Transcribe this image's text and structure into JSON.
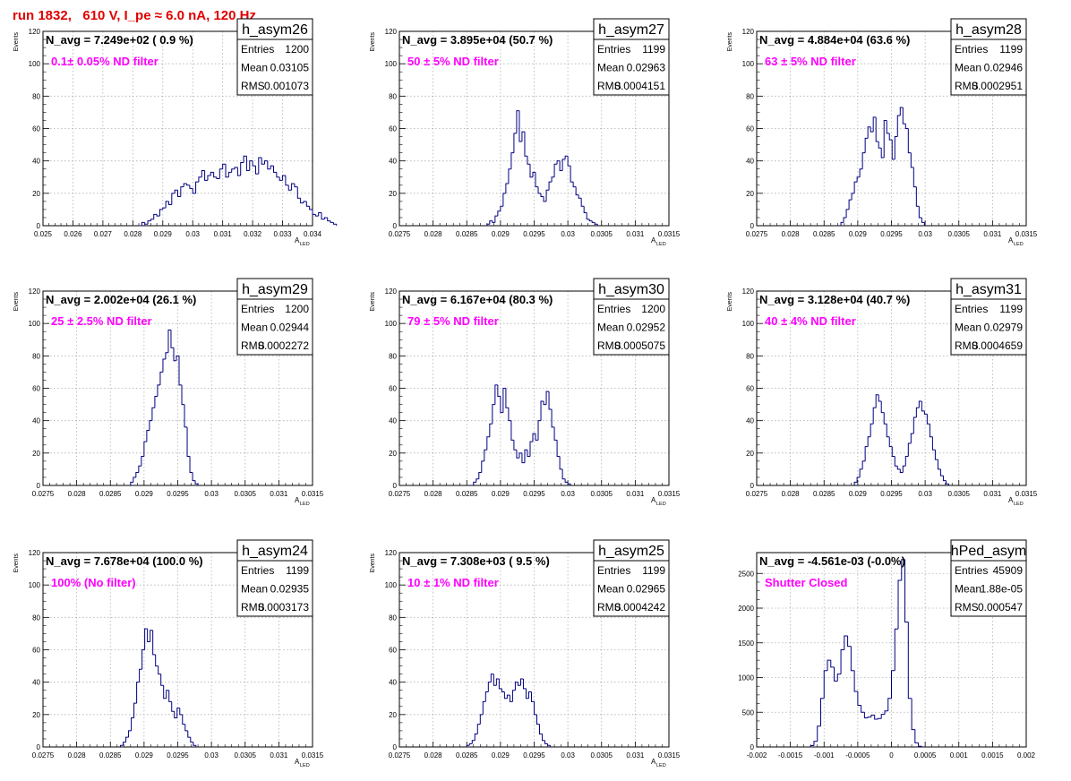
{
  "run_title": "run 1832,   610 V, I_pe ≈ 6.0 nA, 120 Hz",
  "colors": {
    "line": "#000080",
    "annotation": "#ff00ff",
    "title": "#e00000",
    "frame": "#000000"
  },
  "chart_data": [
    {
      "type": "bar",
      "style": "step-histogram",
      "hist_name": "h_asym26",
      "stats": [
        [
          "Entries",
          "1200"
        ],
        [
          "Mean",
          "0.03105"
        ],
        [
          "RMS",
          "0.001073"
        ]
      ],
      "navg_label": "N_avg = 7.249e+02 ( 0.9 %)",
      "annotation": "0.1± 0.05% ND filter",
      "xlabel": "A",
      "xlabel_sub": "LED",
      "ylabel": "Events",
      "xlim": [
        0.025,
        0.034
      ],
      "ylim": [
        0,
        120
      ],
      "xticks": [
        "0.025",
        "0.026",
        "0.027",
        "0.028",
        "0.029",
        "0.03",
        "0.031",
        "0.032",
        "0.033",
        "0.034"
      ],
      "yticks": [
        "0",
        "20",
        "40",
        "60",
        "80",
        "100",
        "120"
      ],
      "grid": true,
      "bin_start": 0.0282,
      "bin_width": 0.0001,
      "values": [
        0,
        2,
        1,
        3,
        4,
        7,
        6,
        10,
        11,
        15,
        13,
        20,
        22,
        18,
        24,
        26,
        25,
        23,
        20,
        27,
        30,
        34,
        28,
        31,
        33,
        30,
        29,
        35,
        38,
        30,
        33,
        35,
        36,
        31,
        39,
        43,
        34,
        40,
        37,
        32,
        42,
        38,
        40,
        35,
        37,
        33,
        30,
        28,
        31,
        25,
        22,
        26,
        24,
        17,
        14,
        15,
        12,
        10,
        7,
        6,
        8,
        4,
        5,
        3,
        2,
        1
      ]
    },
    {
      "type": "bar",
      "style": "step-histogram",
      "hist_name": "h_asym27",
      "stats": [
        [
          "Entries",
          "1199"
        ],
        [
          "Mean",
          "0.02963"
        ],
        [
          "RMS",
          "0.0004151"
        ]
      ],
      "navg_label": "N_avg = 3.895e+04 (50.7 %)",
      "annotation": "50 ± 5% ND filter",
      "xlabel": "A",
      "xlabel_sub": "LED",
      "ylabel": "Events",
      "xlim": [
        0.0275,
        0.0315
      ],
      "ylim": [
        0,
        120
      ],
      "xticks": [
        "0.0275",
        "0.028",
        "0.0285",
        "0.029",
        "0.0295",
        "0.03",
        "0.0305",
        "0.031",
        "0.0315"
      ],
      "yticks": [
        "0",
        "20",
        "40",
        "60",
        "80",
        "100",
        "120"
      ],
      "grid": true,
      "bin_start": 0.0288,
      "bin_width": 4e-05,
      "values": [
        1,
        3,
        2,
        6,
        9,
        12,
        20,
        26,
        35,
        45,
        57,
        71,
        52,
        58,
        43,
        38,
        30,
        33,
        24,
        20,
        18,
        15,
        22,
        27,
        30,
        38,
        40,
        34,
        41,
        43,
        37,
        27,
        24,
        19,
        17,
        12,
        8,
        4,
        3,
        2,
        1
      ]
    },
    {
      "type": "bar",
      "style": "step-histogram",
      "hist_name": "h_asym28",
      "stats": [
        [
          "Entries",
          "1199"
        ],
        [
          "Mean",
          "0.02946"
        ],
        [
          "RMS",
          "0.0002951"
        ]
      ],
      "navg_label": "N_avg = 4.884e+04 (63.6 %)",
      "annotation": "63 ± 5% ND filter",
      "xlabel": "A",
      "xlabel_sub": "LED",
      "ylabel": "Events",
      "xlim": [
        0.0275,
        0.0315
      ],
      "ylim": [
        0,
        120
      ],
      "xticks": [
        "0.0275",
        "0.028",
        "0.0285",
        "0.029",
        "0.0295",
        "0.03",
        "0.0305",
        "0.031",
        "0.0315"
      ],
      "yticks": [
        "0",
        "20",
        "40",
        "60",
        "80",
        "100",
        "120"
      ],
      "grid": true,
      "bin_start": 0.02875,
      "bin_width": 4e-05,
      "values": [
        2,
        5,
        10,
        16,
        20,
        27,
        30,
        35,
        45,
        54,
        61,
        58,
        67,
        52,
        48,
        42,
        65,
        57,
        53,
        41,
        55,
        68,
        73,
        63,
        60,
        45,
        36,
        24,
        12,
        5,
        2
      ]
    },
    {
      "type": "bar",
      "style": "step-histogram",
      "hist_name": "h_asym29",
      "stats": [
        [
          "Entries",
          "1200"
        ],
        [
          "Mean",
          "0.02944"
        ],
        [
          "RMS",
          "0.0002272"
        ]
      ],
      "navg_label": "N_avg = 2.002e+04 (26.1 %)",
      "annotation": "25 ± 2.5% ND filter",
      "xlabel": "A",
      "xlabel_sub": "LED",
      "ylabel": "Events",
      "xlim": [
        0.0275,
        0.0315
      ],
      "ylim": [
        0,
        120
      ],
      "xticks": [
        "0.0275",
        "0.028",
        "0.0285",
        "0.029",
        "0.0295",
        "0.03",
        "0.0305",
        "0.031",
        "0.0315"
      ],
      "yticks": [
        "0",
        "20",
        "40",
        "60",
        "80",
        "100",
        "120"
      ],
      "grid": true,
      "bin_start": 0.0288,
      "bin_width": 4e-05,
      "values": [
        2,
        5,
        8,
        12,
        18,
        27,
        34,
        40,
        48,
        55,
        62,
        70,
        78,
        82,
        96,
        85,
        77,
        80,
        62,
        50,
        36,
        18,
        8,
        3,
        1
      ]
    },
    {
      "type": "bar",
      "style": "step-histogram",
      "hist_name": "h_asym30",
      "stats": [
        [
          "Entries",
          "1200"
        ],
        [
          "Mean",
          "0.02952"
        ],
        [
          "RMS",
          "0.0005075"
        ]
      ],
      "navg_label": "N_avg = 6.167e+04 (80.3 %)",
      "annotation": "79 ± 5% ND filter",
      "xlabel": "A",
      "xlabel_sub": "LED",
      "ylabel": "Events",
      "xlim": [
        0.0275,
        0.0315
      ],
      "ylim": [
        0,
        120
      ],
      "xticks": [
        "0.0275",
        "0.028",
        "0.0285",
        "0.029",
        "0.0295",
        "0.03",
        "0.0305",
        "0.031",
        "0.0315"
      ],
      "yticks": [
        "0",
        "20",
        "40",
        "60",
        "80",
        "100",
        "120"
      ],
      "grid": true,
      "bin_start": 0.0286,
      "bin_width": 4e-05,
      "values": [
        2,
        4,
        8,
        15,
        22,
        30,
        38,
        50,
        62,
        55,
        45,
        60,
        48,
        40,
        28,
        22,
        17,
        20,
        14,
        22,
        18,
        27,
        32,
        28,
        40,
        52,
        50,
        58,
        47,
        36,
        28,
        18,
        10,
        4,
        2,
        1
      ]
    },
    {
      "type": "bar",
      "style": "step-histogram",
      "hist_name": "h_asym31",
      "stats": [
        [
          "Entries",
          "1199"
        ],
        [
          "Mean",
          "0.02979"
        ],
        [
          "RMS",
          "0.0004659"
        ]
      ],
      "navg_label": "N_avg = 3.128e+04 (40.7 %)",
      "annotation": "40 ± 4% ND filter",
      "xlabel": "A",
      "xlabel_sub": "LED",
      "ylabel": "Events",
      "xlim": [
        0.0275,
        0.0315
      ],
      "ylim": [
        0,
        120
      ],
      "xticks": [
        "0.0275",
        "0.028",
        "0.0285",
        "0.029",
        "0.0295",
        "0.03",
        "0.0305",
        "0.031",
        "0.0315"
      ],
      "yticks": [
        "0",
        "20",
        "40",
        "60",
        "80",
        "100",
        "120"
      ],
      "grid": true,
      "bin_start": 0.02895,
      "bin_width": 4e-05,
      "values": [
        2,
        5,
        10,
        15,
        24,
        30,
        38,
        48,
        56,
        52,
        45,
        38,
        30,
        24,
        18,
        12,
        10,
        8,
        12,
        18,
        26,
        32,
        42,
        48,
        52,
        46,
        44,
        38,
        30,
        22,
        16,
        10,
        6,
        3,
        1
      ]
    },
    {
      "type": "bar",
      "style": "step-histogram",
      "hist_name": "h_asym24",
      "stats": [
        [
          "Entries",
          "1199"
        ],
        [
          "Mean",
          "0.02935"
        ],
        [
          "RMS",
          "0.0003173"
        ]
      ],
      "navg_label": "N_avg = 7.678e+04 (100.0 %)",
      "annotation": "100% (No filter)",
      "xlabel": "A",
      "xlabel_sub": "LED",
      "ylabel": "Events",
      "xlim": [
        0.0275,
        0.0315
      ],
      "ylim": [
        0,
        120
      ],
      "xticks": [
        "0.0275",
        "0.028",
        "0.0285",
        "0.029",
        "0.0295",
        "0.03",
        "0.0305",
        "0.031",
        "0.0315"
      ],
      "yticks": [
        "0",
        "20",
        "40",
        "60",
        "80",
        "100",
        "120"
      ],
      "grid": true,
      "bin_start": 0.02865,
      "bin_width": 4e-05,
      "values": [
        1,
        3,
        6,
        10,
        18,
        27,
        40,
        48,
        60,
        73,
        65,
        72,
        57,
        50,
        45,
        38,
        30,
        35,
        28,
        22,
        18,
        24,
        20,
        14,
        10,
        6,
        3,
        1
      ]
    },
    {
      "type": "bar",
      "style": "step-histogram",
      "hist_name": "h_asym25",
      "stats": [
        [
          "Entries",
          "1199"
        ],
        [
          "Mean",
          "0.02965"
        ],
        [
          "RMS",
          "0.0004242"
        ]
      ],
      "navg_label": "N_avg = 7.308e+03 ( 9.5 %)",
      "annotation": "10 ± 1% ND filter",
      "xlabel": "A",
      "xlabel_sub": "LED",
      "ylabel": "Events",
      "xlim": [
        0.0275,
        0.0315
      ],
      "ylim": [
        0,
        120
      ],
      "xticks": [
        "0.0275",
        "0.028",
        "0.0285",
        "0.029",
        "0.0295",
        "0.03",
        "0.0305",
        "0.031",
        "0.0315"
      ],
      "yticks": [
        "0",
        "20",
        "40",
        "60",
        "80",
        "100",
        "120"
      ],
      "grid": true,
      "bin_start": 0.0285,
      "bin_width": 4e-05,
      "values": [
        1,
        2,
        4,
        8,
        14,
        20,
        28,
        34,
        40,
        45,
        38,
        42,
        36,
        34,
        30,
        32,
        28,
        35,
        40,
        38,
        42,
        36,
        30,
        34,
        28,
        20,
        14,
        8,
        4,
        2,
        1
      ]
    },
    {
      "type": "bar",
      "style": "step-histogram",
      "hist_name": "hPed_asym",
      "stats": [
        [
          "Entries",
          "45909"
        ],
        [
          "Mean",
          "1.88e-05"
        ],
        [
          "RMS",
          "0.000547"
        ]
      ],
      "navg_label": "N_avg = -4.561e-03 (-0.0%)",
      "annotation": "Shutter Closed",
      "xlabel": "",
      "xlabel_sub": "",
      "ylabel": "",
      "xlim": [
        -0.002,
        0.002
      ],
      "ylim": [
        0,
        2800
      ],
      "xticks": [
        "-0.002",
        "-0.0015",
        "-0.001",
        "-0.0005",
        "0",
        "0.0005",
        "0.001",
        "0.0015",
        "0.002"
      ],
      "yticks": [
        "0",
        "500",
        "1000",
        "1500",
        "2000",
        "2500"
      ],
      "grid": true,
      "bin_start": -0.0012,
      "bin_width": 5e-05,
      "values": [
        20,
        80,
        300,
        700,
        1100,
        1250,
        1150,
        950,
        1050,
        1400,
        1600,
        1450,
        1100,
        800,
        600,
        500,
        420,
        430,
        460,
        400,
        410,
        470,
        520,
        700,
        1100,
        1700,
        2400,
        2700,
        1800,
        700,
        250,
        60,
        10
      ]
    }
  ]
}
